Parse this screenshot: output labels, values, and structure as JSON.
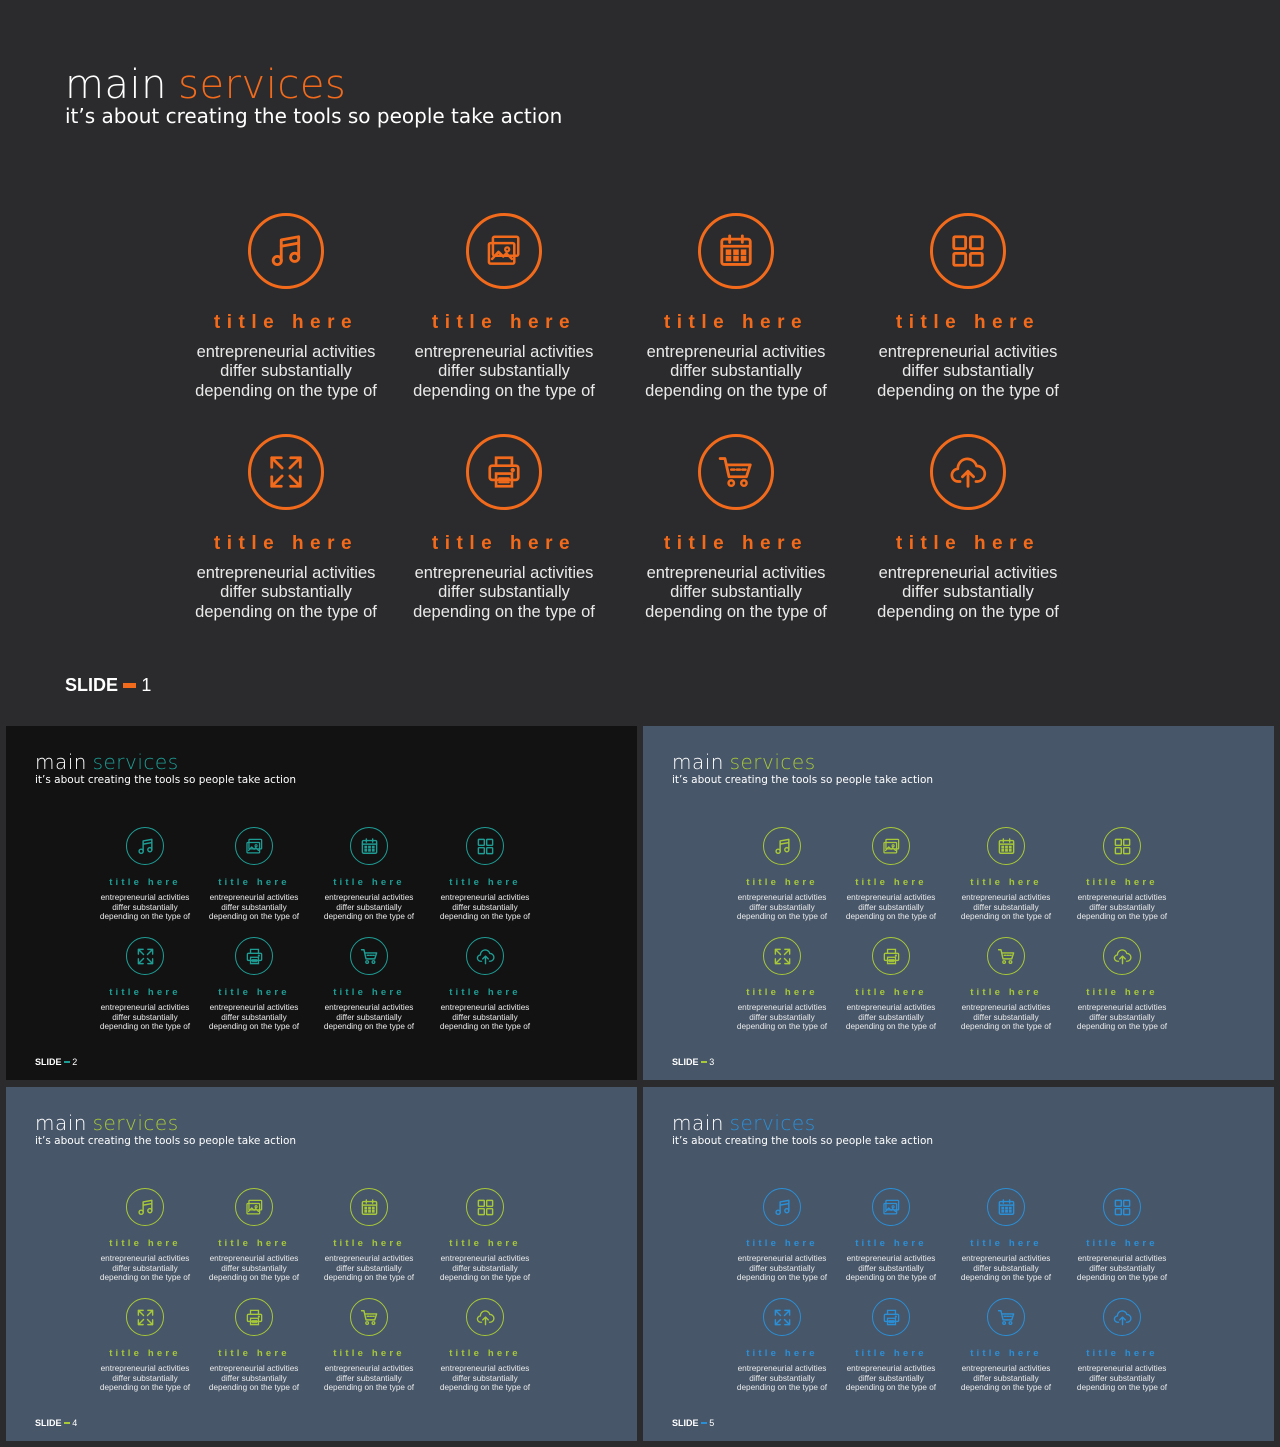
{
  "slides": [
    {
      "heading_main": "main",
      "heading_accent": "services",
      "subtitle": "it’s about creating the tools so people take action",
      "footer_label": "SLIDE",
      "footer_number": "1",
      "bg": "#2b2b2d",
      "accent": "#f26a1b"
    },
    {
      "heading_main": "main",
      "heading_accent": "services",
      "subtitle": "it’s about creating the tools so people take action",
      "footer_label": "SLIDE",
      "footer_number": "2",
      "bg": "#121213",
      "accent": "#1e9d94"
    },
    {
      "heading_main": "main",
      "heading_accent": "services",
      "subtitle": "it’s about creating the tools so people take action",
      "footer_label": "SLIDE",
      "footer_number": "3",
      "bg": "#475669",
      "accent": "#a7c838"
    },
    {
      "heading_main": "main",
      "heading_accent": "services",
      "subtitle": "it’s about creating the tools so people take action",
      "footer_label": "SLIDE",
      "footer_number": "4",
      "bg": "#475669",
      "accent": "#a7c838"
    },
    {
      "heading_main": "main",
      "heading_accent": "services",
      "subtitle": "it’s about creating the tools so people take action",
      "footer_label": "SLIDE",
      "footer_number": "5",
      "bg": "#475669",
      "accent": "#2b8fd6"
    }
  ],
  "items": [
    {
      "icon": "music-note-icon",
      "title": "title here",
      "desc": [
        "entrepreneurial activities",
        "differ substantially",
        "depending on the type of"
      ]
    },
    {
      "icon": "image-gallery-icon",
      "title": "title here",
      "desc": [
        "entrepreneurial activities",
        "differ substantially",
        "depending on the type of"
      ]
    },
    {
      "icon": "calendar-icon",
      "title": "title here",
      "desc": [
        "entrepreneurial activities",
        "differ substantially",
        "depending on the type of"
      ]
    },
    {
      "icon": "grid-apps-icon",
      "title": "title here",
      "desc": [
        "entrepreneurial activities",
        "differ substantially",
        "depending on the type of"
      ]
    },
    {
      "icon": "expand-arrows-icon",
      "title": "title here",
      "desc": [
        "entrepreneurial activities",
        "differ substantially",
        "depending on the type of"
      ]
    },
    {
      "icon": "printer-icon",
      "title": "title here",
      "desc": [
        "entrepreneurial activities",
        "differ substantially",
        "depending on the type of"
      ]
    },
    {
      "icon": "shopping-cart-icon",
      "title": "title here",
      "desc": [
        "entrepreneurial activities",
        "differ substantially",
        "depending on the type of"
      ]
    },
    {
      "icon": "cloud-upload-icon",
      "title": "title here",
      "desc": [
        "entrepreneurial activities",
        "differ substantially",
        "depending on the type of"
      ]
    }
  ]
}
